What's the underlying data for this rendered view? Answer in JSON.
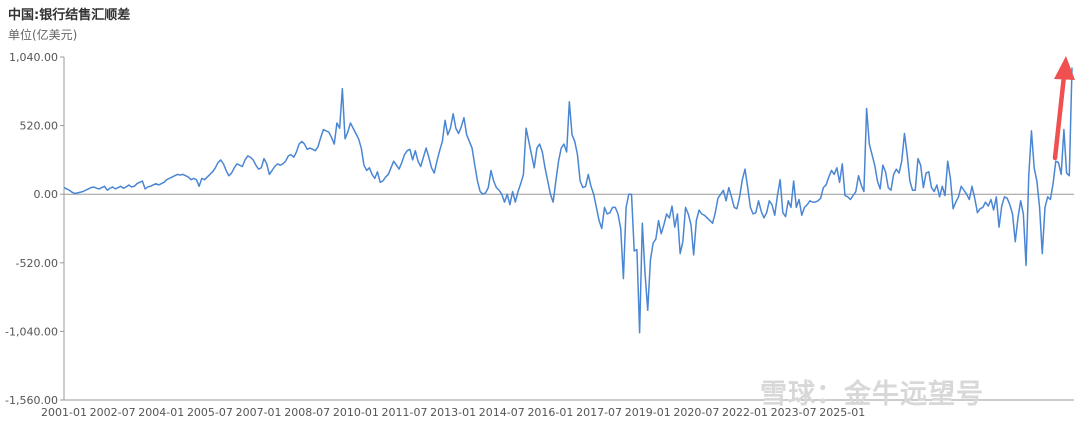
{
  "chart_data": {
    "type": "line",
    "title": "中国:银行结售汇顺差",
    "unit": "单位(亿美元)",
    "ylim": [
      -1560,
      1040
    ],
    "y_ticks": [
      "1,040.00",
      "520.00",
      "0.00",
      "-520.00",
      "-1,040.00",
      "-1,560.00"
    ],
    "y_tick_values": [
      1040,
      520,
      0,
      -520,
      -1040,
      -1560
    ],
    "x_ticks": [
      "2001-01",
      "2002-07",
      "2004-01",
      "2005-07",
      "2007-01",
      "2008-07",
      "2010-01",
      "2011-07",
      "2013-01",
      "2014-07",
      "2016-01",
      "2017-07",
      "2019-01",
      "2020-07",
      "2022-01",
      "2023-07",
      "2025-01"
    ],
    "x_start": "2001-01",
    "grid": false,
    "colors": {
      "line": "#4a86d4",
      "arrow": "#f05050",
      "axis": "#999999"
    },
    "series": [
      {
        "values": [
          50,
          40,
          30,
          15,
          5,
          10,
          15,
          20,
          30,
          40,
          50,
          55,
          45,
          40,
          50,
          60,
          30,
          45,
          55,
          40,
          50,
          60,
          45,
          55,
          70,
          55,
          60,
          80,
          90,
          100,
          40,
          55,
          60,
          70,
          80,
          70,
          80,
          90,
          110,
          120,
          130,
          140,
          150,
          145,
          150,
          140,
          130,
          110,
          120,
          110,
          60,
          120,
          110,
          130,
          150,
          170,
          200,
          240,
          260,
          230,
          180,
          140,
          160,
          200,
          230,
          220,
          210,
          260,
          290,
          280,
          260,
          220,
          190,
          200,
          270,
          230,
          150,
          180,
          210,
          230,
          220,
          230,
          250,
          290,
          300,
          280,
          320,
          380,
          400,
          380,
          340,
          350,
          340,
          330,
          360,
          430,
          490,
          480,
          470,
          430,
          380,
          540,
          500,
          800,
          420,
          470,
          540,
          500,
          460,
          420,
          350,
          220,
          180,
          200,
          150,
          120,
          170,
          90,
          100,
          130,
          150,
          200,
          250,
          220,
          190,
          240,
          300,
          330,
          340,
          260,
          330,
          250,
          210,
          280,
          350,
          280,
          200,
          160,
          250,
          330,
          400,
          560,
          450,
          500,
          610,
          500,
          460,
          510,
          580,
          450,
          400,
          350,
          220,
          100,
          20,
          0,
          10,
          50,
          180,
          100,
          50,
          30,
          0,
          -60,
          0,
          -80,
          20,
          -60,
          20,
          80,
          150,
          500,
          400,
          300,
          200,
          350,
          380,
          320,
          200,
          100,
          0,
          -60,
          100,
          250,
          350,
          380,
          320,
          700,
          450,
          400,
          300,
          100,
          50,
          60,
          150,
          60,
          0,
          -100,
          -200,
          -260,
          -100,
          -150,
          -140,
          -100,
          -100,
          -150,
          -260,
          -640,
          -100,
          0,
          0,
          -430,
          -420,
          -1050,
          -220,
          -600,
          -880,
          -500,
          -370,
          -340,
          -200,
          -300,
          -230,
          -150,
          -180,
          -90,
          -250,
          -150,
          -450,
          -360,
          -100,
          -150,
          -230,
          -460,
          -200,
          -120,
          -150,
          -160,
          -180,
          -200,
          -220,
          -140,
          -30,
          0,
          30,
          -50,
          50,
          -20,
          -100,
          -110,
          -20,
          110,
          190,
          50,
          -100,
          -150,
          -140,
          -50,
          -130,
          -180,
          -140,
          -50,
          -80,
          -160,
          -10,
          110,
          -140,
          -170,
          -50,
          -100,
          100,
          -100,
          -40,
          -160,
          -100,
          -80,
          -50,
          -60,
          -60,
          -50,
          -30,
          50,
          70,
          130,
          180,
          150,
          200,
          90,
          230,
          -10,
          -20,
          -40,
          -10,
          20,
          140,
          70,
          20,
          650,
          380,
          300,
          220,
          100,
          40,
          220,
          170,
          50,
          30,
          150,
          190,
          160,
          250,
          460,
          300,
          100,
          30,
          30,
          270,
          220,
          50,
          160,
          170,
          50,
          20,
          70,
          -20,
          60,
          -10,
          250,
          120,
          -110,
          -60,
          -20,
          60,
          30,
          0,
          -40,
          60,
          -30,
          -140,
          -110,
          -100,
          -60,
          -90,
          -40,
          -120,
          -20,
          -250,
          -90,
          -20,
          -30,
          -80,
          -150,
          -360,
          -180,
          -50,
          -150,
          -540,
          140,
          480,
          200,
          100,
          -100,
          -450,
          -100,
          -20,
          -40,
          80,
          250,
          240,
          150,
          490,
          160,
          140,
          960
        ]
      }
    ]
  },
  "watermark": "雪球：金牛远望号"
}
